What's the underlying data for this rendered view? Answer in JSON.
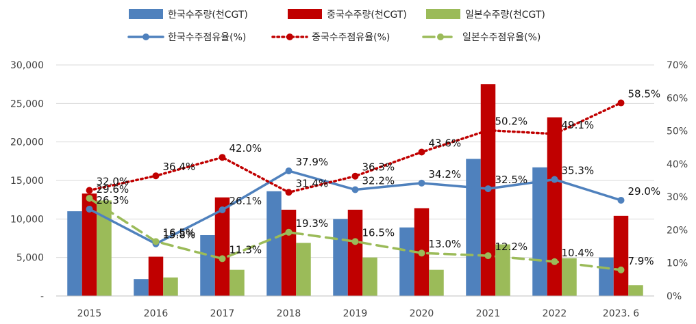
{
  "chart_data": {
    "type": "bar+line",
    "categories": [
      "2015",
      "2016",
      "2017",
      "2018",
      "2019",
      "2020",
      "2021",
      "2022",
      "2023. 6"
    ],
    "y_left": {
      "ylim": [
        0,
        30000
      ],
      "ticks": [
        0,
        5000,
        10000,
        15000,
        20000,
        25000,
        30000
      ],
      "tick_labels": [
        "-",
        "5,000",
        "10,000",
        "15,000",
        "20,000",
        "25,000",
        "30,000"
      ]
    },
    "y_right": {
      "ylim": [
        0,
        70
      ],
      "ticks": [
        0,
        10,
        20,
        30,
        40,
        50,
        60,
        70
      ],
      "tick_labels": [
        "0%",
        "10%",
        "20%",
        "30%",
        "40%",
        "50%",
        "60%",
        "70%"
      ]
    },
    "grid": true,
    "legend_position": "top",
    "bar_series": [
      {
        "name": "한국수주량(천CGT)",
        "color": "#4f81bd",
        "values": [
          11000,
          2200,
          7900,
          13600,
          10000,
          8900,
          17800,
          16700,
          5000
        ]
      },
      {
        "name": "중국수주량(천CGT)",
        "color": "#c00000",
        "values": [
          13300,
          5100,
          12800,
          11200,
          11200,
          11400,
          27500,
          23200,
          10400
        ]
      },
      {
        "name": "일본수주량(천CGT)",
        "color": "#9bbb59",
        "values": [
          12400,
          2400,
          3400,
          6900,
          5000,
          3400,
          6700,
          4900,
          1400
        ]
      }
    ],
    "line_series": [
      {
        "name": "한국수주점유율(%)",
        "color": "#4f81bd",
        "style": "solid",
        "values": [
          26.3,
          15.8,
          26.1,
          37.9,
          32.2,
          34.2,
          32.5,
          35.3,
          29.0
        ],
        "labels": [
          "26.3%",
          "15.8%",
          "26.1%",
          "37.9%",
          "32.2%",
          "34.2%",
          "32.5%",
          "35.3%",
          "29.0%"
        ]
      },
      {
        "name": "중국수주점유율(%)",
        "color": "#c00000",
        "style": "dotted",
        "values": [
          32.0,
          36.4,
          42.0,
          31.4,
          36.3,
          43.6,
          50.2,
          49.1,
          58.5
        ],
        "labels": [
          "32.0%",
          "36.4%",
          "42.0%",
          "31.4%",
          "36.3%",
          "43.6%",
          "50.2%",
          "49.1%",
          "58.5%"
        ]
      },
      {
        "name": "일본수주점유율(%)",
        "color": "#9bbb59",
        "style": "dashed",
        "values": [
          29.6,
          16.5,
          11.3,
          19.3,
          16.5,
          13.0,
          12.2,
          10.4,
          7.9
        ],
        "labels": [
          "29.6%",
          "16.5%",
          "11.3%",
          "19.3%",
          "16.5%",
          "13.0%",
          "12.2%",
          "10.4%",
          "7.9%"
        ]
      }
    ]
  }
}
